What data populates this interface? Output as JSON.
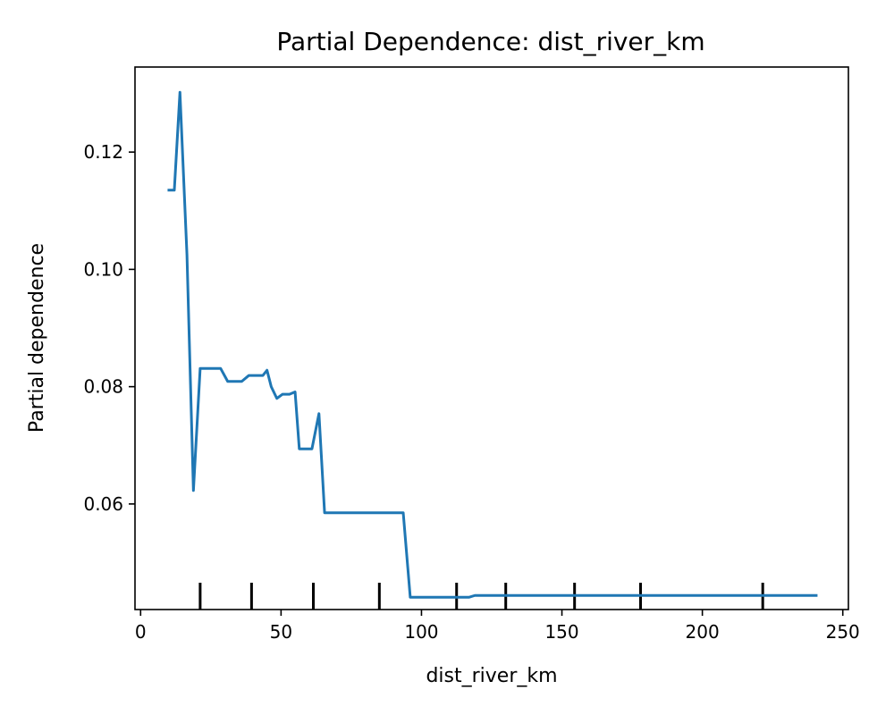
{
  "chart_data": {
    "type": "line",
    "title": "Partial Dependence: dist_river_km",
    "xlabel": "dist_river_km",
    "ylabel": "Partial dependence",
    "xlim": [
      -2,
      252
    ],
    "ylim": [
      0.042,
      0.1345
    ],
    "xticks": [
      0,
      50,
      100,
      150,
      200,
      250
    ],
    "xtick_labels": [
      "0",
      "50",
      "100",
      "150",
      "200",
      "250"
    ],
    "yticks": [
      0.06,
      0.08,
      0.1,
      0.12
    ],
    "ytick_labels": [
      "0.06",
      "0.08",
      "0.10",
      "0.12"
    ],
    "grid": false,
    "series": [
      {
        "color": "#1f77b4",
        "x": [
          9.6,
          12.0,
          14.0,
          16.5,
          18.8,
          21.2,
          23.0,
          25.0,
          28.5,
          31.0,
          33.5,
          36.0,
          38.5,
          41.0,
          43.5,
          45.0,
          46.5,
          48.5,
          50.5,
          53.0,
          55.0,
          56.5,
          58.5,
          61.0,
          63.5,
          65.5,
          68.0,
          72.0,
          80.0,
          88.0,
          93.5,
          96.0,
          100.0,
          110.0,
          117.0,
          119.0,
          130.0,
          150.0,
          170.0,
          190.0,
          210.0,
          230.0,
          241.0
        ],
        "y": [
          0.1135,
          0.1135,
          0.1302,
          0.1025,
          0.0623,
          0.0831,
          0.0831,
          0.0831,
          0.0831,
          0.0809,
          0.0809,
          0.0809,
          0.0819,
          0.0819,
          0.0819,
          0.0828,
          0.08,
          0.078,
          0.0787,
          0.0787,
          0.0791,
          0.0694,
          0.0694,
          0.0694,
          0.0754,
          0.0585,
          0.0585,
          0.0585,
          0.0585,
          0.0585,
          0.0585,
          0.0441,
          0.0441,
          0.0441,
          0.0441,
          0.0444,
          0.0444,
          0.0444,
          0.0444,
          0.0444,
          0.0444,
          0.0444,
          0.0444
        ]
      }
    ],
    "rug_x": [
      21.2,
      39.5,
      61.5,
      85.0,
      112.5,
      130.0,
      154.5,
      178.0,
      221.5
    ]
  }
}
